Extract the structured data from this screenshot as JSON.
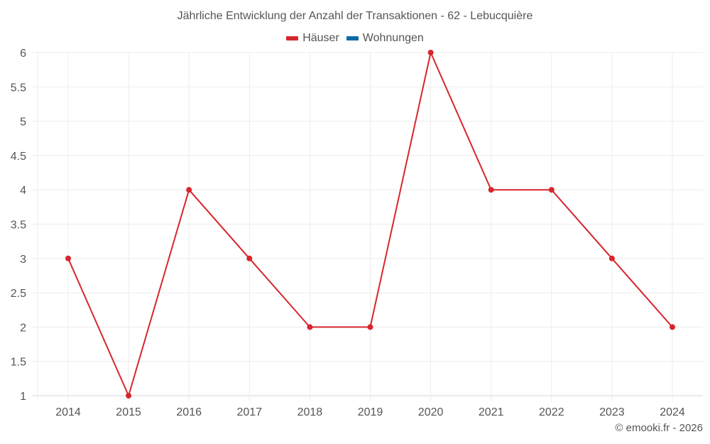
{
  "chart_data": {
    "type": "line",
    "title": "Jährliche Entwicklung der Anzahl der Transaktionen - 62 - Lebucquière",
    "xlabel": "",
    "ylabel": "",
    "categories": [
      "2014",
      "2015",
      "2016",
      "2017",
      "2018",
      "2019",
      "2020",
      "2021",
      "2022",
      "2023",
      "2024"
    ],
    "series": [
      {
        "name": "Häuser",
        "color": "#d7262d",
        "values": [
          3,
          1,
          4,
          3,
          2,
          2,
          6,
          4,
          4,
          3,
          2
        ]
      },
      {
        "name": "Wohnungen",
        "color": "#0f6aa8",
        "values": []
      }
    ],
    "ylim": [
      1,
      6
    ],
    "yticks": [
      "1",
      "1.5",
      "2",
      "2.5",
      "3",
      "3.5",
      "4",
      "4.5",
      "5",
      "5.5",
      "6"
    ],
    "grid": true,
    "legend_position": "top"
  },
  "footer": {
    "credit": "© emooki.fr - 2026"
  }
}
